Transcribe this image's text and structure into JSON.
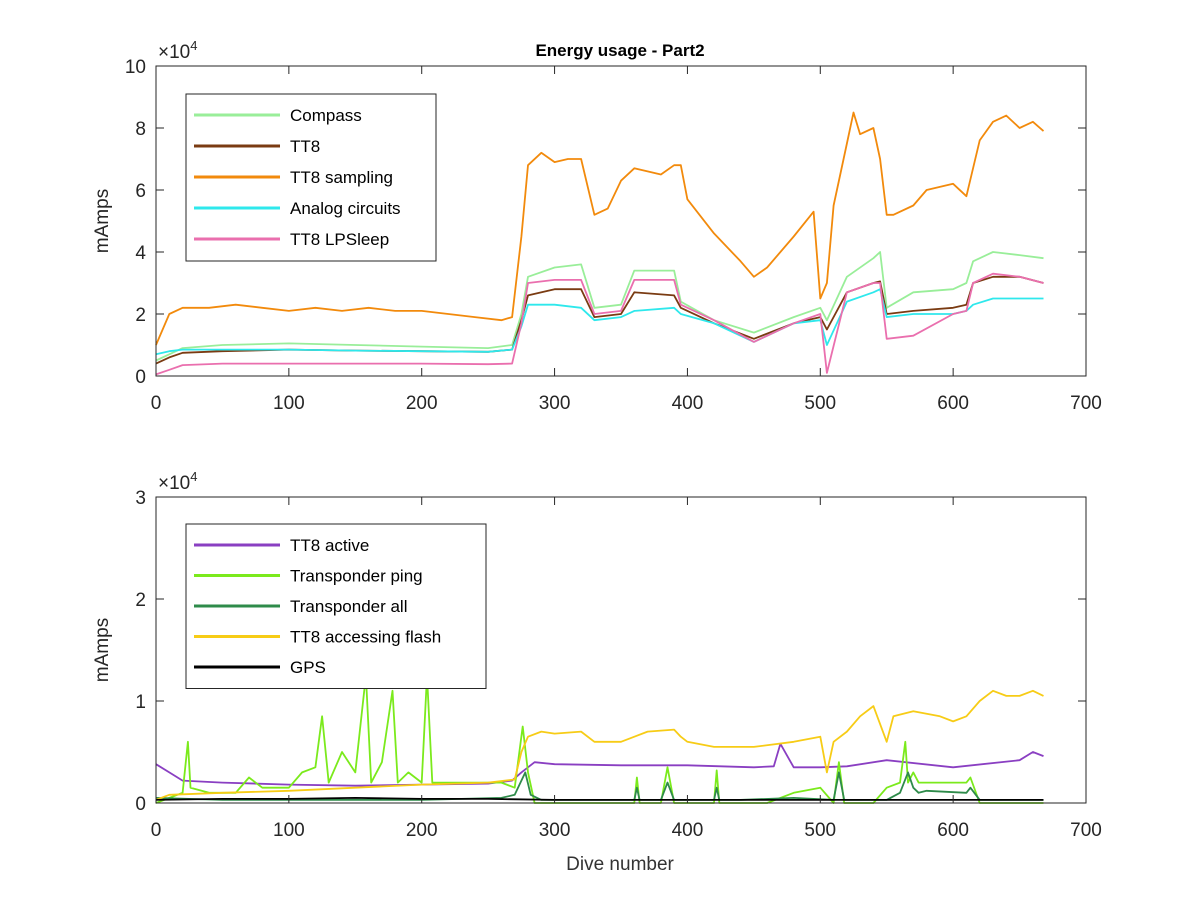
{
  "figure": {
    "title": "Energy usage - Part2",
    "xlabel": "Dive number"
  },
  "chart_data": [
    {
      "type": "line",
      "title": "Energy usage - Part2",
      "xlabel": "",
      "ylabel": "mAmps",
      "exponent_label": "×10",
      "exponent_power": "4",
      "xlim": [
        0,
        700
      ],
      "ylim": [
        0,
        100000
      ],
      "xticks": [
        0,
        100,
        200,
        300,
        400,
        500,
        600,
        700
      ],
      "yticks": [
        0,
        20000,
        40000,
        60000,
        80000,
        100000
      ],
      "ytick_labels": [
        "0",
        "2",
        "4",
        "6",
        "8",
        "10"
      ],
      "grid": false,
      "legend_position": "top-left",
      "series": [
        {
          "name": "Compass",
          "color": "#99ee99",
          "x": [
            0,
            10,
            20,
            50,
            100,
            150,
            200,
            250,
            268,
            275,
            280,
            300,
            320,
            330,
            350,
            360,
            390,
            395,
            420,
            450,
            480,
            500,
            505,
            520,
            540,
            545,
            550,
            570,
            600,
            610,
            615,
            630,
            650,
            668
          ],
          "y": [
            5000,
            7000,
            9000,
            10000,
            10500,
            10000,
            9500,
            9000,
            10000,
            20000,
            32000,
            35000,
            36000,
            22000,
            23000,
            34000,
            34000,
            24000,
            18000,
            14000,
            19000,
            22000,
            18000,
            32000,
            38000,
            40000,
            22000,
            27000,
            28000,
            30000,
            37000,
            40000,
            39000,
            38000
          ]
        },
        {
          "name": "TT8",
          "color": "#7a3b12",
          "x": [
            0,
            10,
            20,
            50,
            100,
            150,
            200,
            250,
            268,
            275,
            280,
            300,
            320,
            330,
            350,
            360,
            390,
            395,
            420,
            450,
            480,
            500,
            505,
            520,
            540,
            545,
            550,
            570,
            600,
            610,
            615,
            630,
            650,
            668
          ],
          "y": [
            4000,
            6000,
            7500,
            8000,
            8500,
            8200,
            8000,
            7800,
            8500,
            18000,
            26000,
            28000,
            28000,
            19000,
            20000,
            27000,
            26000,
            22000,
            17000,
            12000,
            17000,
            19000,
            15000,
            27000,
            30000,
            30500,
            20000,
            21000,
            22000,
            23000,
            30000,
            32000,
            32000,
            30000
          ]
        },
        {
          "name": "TT8 sampling",
          "color": "#f28a0c",
          "x": [
            0,
            10,
            20,
            40,
            60,
            80,
            100,
            120,
            140,
            160,
            180,
            200,
            220,
            240,
            260,
            268,
            275,
            280,
            290,
            300,
            310,
            320,
            330,
            340,
            350,
            360,
            370,
            380,
            390,
            395,
            400,
            420,
            440,
            450,
            460,
            480,
            495,
            500,
            505,
            510,
            520,
            525,
            530,
            540,
            545,
            550,
            555,
            570,
            580,
            600,
            610,
            620,
            630,
            640,
            650,
            660,
            668
          ],
          "y": [
            10000,
            20000,
            22000,
            22000,
            23000,
            22000,
            21000,
            22000,
            21000,
            22000,
            21000,
            21000,
            20000,
            19000,
            18000,
            19000,
            45000,
            68000,
            72000,
            69000,
            70000,
            70000,
            52000,
            54000,
            63000,
            67000,
            66000,
            65000,
            68000,
            68000,
            57000,
            46000,
            37000,
            32000,
            35000,
            45000,
            53000,
            25000,
            30000,
            55000,
            75000,
            85000,
            78000,
            80000,
            70000,
            52000,
            52000,
            55000,
            60000,
            62000,
            58000,
            76000,
            82000,
            84000,
            80000,
            82000,
            79000
          ]
        },
        {
          "name": "Analog circuits",
          "color": "#2ee8ec",
          "x": [
            0,
            10,
            20,
            50,
            100,
            150,
            200,
            250,
            268,
            275,
            280,
            300,
            320,
            330,
            350,
            360,
            390,
            395,
            420,
            450,
            480,
            500,
            505,
            520,
            540,
            545,
            550,
            570,
            600,
            610,
            615,
            630,
            650,
            668
          ],
          "y": [
            7000,
            8000,
            8500,
            8500,
            8500,
            8200,
            8000,
            7800,
            8500,
            16000,
            23000,
            23000,
            22000,
            18000,
            19000,
            21000,
            22000,
            20000,
            17000,
            11000,
            17000,
            18000,
            10000,
            24000,
            27000,
            28000,
            19000,
            20000,
            20000,
            21000,
            23000,
            25000,
            25000,
            25000
          ]
        },
        {
          "name": "TT8 LPSleep",
          "color": "#ea6fae",
          "x": [
            0,
            10,
            20,
            50,
            100,
            150,
            200,
            250,
            268,
            275,
            280,
            300,
            320,
            330,
            350,
            360,
            390,
            395,
            420,
            450,
            480,
            500,
            505,
            520,
            540,
            545,
            550,
            570,
            600,
            610,
            615,
            630,
            650,
            668
          ],
          "y": [
            500,
            2000,
            3500,
            4000,
            4000,
            4000,
            4000,
            3800,
            4000,
            17000,
            30000,
            31000,
            31000,
            20000,
            21000,
            31000,
            31000,
            23000,
            18000,
            11000,
            17000,
            20000,
            1000,
            27000,
            30000,
            30000,
            12000,
            13000,
            20000,
            21000,
            30000,
            33000,
            32000,
            30000
          ]
        }
      ]
    },
    {
      "type": "line",
      "title": "",
      "xlabel": "Dive number",
      "ylabel": "mAmps",
      "exponent_label": "×10",
      "exponent_power": "4",
      "xlim": [
        0,
        700
      ],
      "ylim": [
        0,
        30000
      ],
      "xticks": [
        0,
        100,
        200,
        300,
        400,
        500,
        600,
        700
      ],
      "yticks": [
        0,
        10000,
        20000,
        30000
      ],
      "ytick_labels": [
        "0",
        "1",
        "2",
        "3"
      ],
      "grid": false,
      "legend_position": "top-left",
      "series": [
        {
          "name": "TT8 active",
          "color": "#8a3fc2",
          "x": [
            0,
            10,
            20,
            50,
            100,
            150,
            200,
            250,
            268,
            275,
            285,
            300,
            350,
            400,
            450,
            465,
            470,
            480,
            500,
            520,
            550,
            600,
            650,
            660,
            668
          ],
          "y": [
            3800,
            3000,
            2200,
            2000,
            1800,
            1700,
            1800,
            1900,
            2200,
            3000,
            4000,
            3800,
            3700,
            3700,
            3500,
            3600,
            5800,
            3500,
            3500,
            3600,
            4200,
            3500,
            4200,
            5000,
            4600
          ]
        },
        {
          "name": "Transponder ping",
          "color": "#7bea1c",
          "x": [
            0,
            10,
            20,
            24,
            26,
            40,
            60,
            70,
            80,
            100,
            110,
            120,
            125,
            130,
            140,
            150,
            158,
            162,
            170,
            178,
            182,
            190,
            200,
            204,
            208,
            230,
            260,
            270,
            276,
            280,
            285,
            300,
            360,
            362,
            364,
            380,
            385,
            390,
            420,
            422,
            424,
            440,
            460,
            480,
            500,
            510,
            514,
            518,
            540,
            550,
            560,
            564,
            566,
            570,
            574,
            580,
            600,
            610,
            613,
            620,
            668
          ],
          "y": [
            0,
            500,
            1000,
            6000,
            1500,
            1000,
            1000,
            2500,
            1500,
            1500,
            3000,
            3500,
            8500,
            2000,
            5000,
            3000,
            12500,
            2000,
            4000,
            11000,
            2000,
            3000,
            2000,
            12500,
            2000,
            2000,
            2000,
            1500,
            7500,
            3000,
            0,
            0,
            0,
            2500,
            0,
            0,
            3500,
            0,
            0,
            3200,
            0,
            0,
            0,
            1000,
            1500,
            0,
            4000,
            0,
            0,
            1500,
            2000,
            6000,
            2000,
            3000,
            2000,
            2000,
            2000,
            2000,
            2500,
            0,
            0
          ]
        },
        {
          "name": "Transponder all",
          "color": "#2e8b4a",
          "x": [
            0,
            50,
            100,
            150,
            200,
            260,
            270,
            278,
            282,
            290,
            360,
            362,
            364,
            380,
            385,
            390,
            420,
            422,
            424,
            440,
            480,
            510,
            514,
            518,
            550,
            560,
            566,
            570,
            574,
            580,
            610,
            613,
            620,
            668
          ],
          "y": [
            500,
            300,
            300,
            300,
            300,
            500,
            800,
            3000,
            800,
            300,
            300,
            1500,
            300,
            300,
            2000,
            300,
            300,
            1500,
            300,
            300,
            500,
            300,
            3000,
            300,
            300,
            1000,
            3000,
            1500,
            1000,
            1200,
            1000,
            1500,
            300,
            300
          ]
        },
        {
          "name": "TT8 accessing flash",
          "color": "#f7cc16",
          "x": [
            0,
            10,
            50,
            100,
            150,
            200,
            250,
            270,
            275,
            280,
            290,
            300,
            320,
            330,
            350,
            370,
            390,
            395,
            400,
            420,
            450,
            480,
            500,
            505,
            510,
            520,
            530,
            540,
            550,
            555,
            570,
            590,
            600,
            610,
            620,
            630,
            640,
            650,
            660,
            668
          ],
          "y": [
            300,
            800,
            1000,
            1200,
            1500,
            1800,
            2000,
            2300,
            5000,
            6500,
            7000,
            6800,
            7000,
            6000,
            6000,
            7000,
            7200,
            6500,
            6000,
            5500,
            5500,
            6000,
            6500,
            3000,
            6000,
            7000,
            8500,
            9500,
            6000,
            8500,
            9000,
            8500,
            8000,
            8500,
            10000,
            11000,
            10500,
            10500,
            11000,
            10500
          ]
        },
        {
          "name": "GPS",
          "color": "#000000",
          "x": [
            0,
            50,
            100,
            150,
            200,
            250,
            300,
            350,
            400,
            450,
            500,
            550,
            600,
            650,
            668
          ],
          "y": [
            300,
            400,
            400,
            500,
            400,
            400,
            300,
            300,
            300,
            300,
            300,
            300,
            300,
            300,
            300
          ]
        }
      ]
    }
  ]
}
